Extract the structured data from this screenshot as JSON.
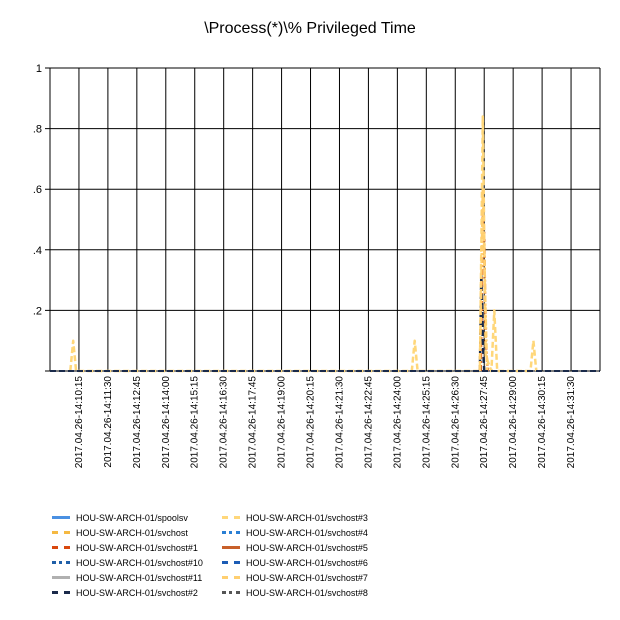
{
  "chart_data": {
    "type": "line",
    "title": "\\Process(*)\\% Privileged Time",
    "xlabel": "",
    "ylabel": "",
    "ylim": [
      0,
      1
    ],
    "y_ticks": [
      "",
      ".2",
      ".4",
      ".6",
      ".8",
      "1"
    ],
    "grid": true,
    "legend_position": "bottom",
    "x_tick_labels": [
      "2017.04.26-14:10:15",
      "2017.04.26-14:11:30",
      "2017.04.26-14:12:45",
      "2017.04.26-14:14:00",
      "2017.04.26-14:15:15",
      "2017.04.26-14:16:30",
      "2017.04.26-14:17:45",
      "2017.04.26-14:19:00",
      "2017.04.26-14:20:15",
      "2017.04.26-14:21:30",
      "2017.04.26-14:22:45",
      "2017.04.26-14:24:00",
      "2017.04.26-14:25:15",
      "2017.04.26-14:26:30",
      "2017.04.26-14:27:45",
      "2017.04.26-14:29:00",
      "2017.04.26-14:30:15",
      "2017.04.26-14:31:30"
    ],
    "series": [
      {
        "name": "HOU-SW-ARCH-01/spoolsv",
        "color": "#4a90e2",
        "dash": "solid",
        "points": []
      },
      {
        "name": "HOU-SW-ARCH-01/svchost",
        "color": "#f5b942",
        "dash": "dash",
        "points": []
      },
      {
        "name": "HOU-SW-ARCH-01/svchost#1",
        "color": "#d9480f",
        "dash": "dashdot",
        "points": [
          [
            13.88,
            0
          ],
          [
            13.95,
            0.52
          ],
          [
            14.0,
            0.45
          ],
          [
            14.05,
            0.1
          ],
          [
            14.12,
            0
          ]
        ]
      },
      {
        "name": "HOU-SW-ARCH-01/svchost#10",
        "color": "#1f5fa8",
        "dash": "dot",
        "points": []
      },
      {
        "name": "HOU-SW-ARCH-01/svchost#11",
        "color": "#b0b0b0",
        "dash": "solid",
        "points": []
      },
      {
        "name": "HOU-SW-ARCH-01/svchost#2",
        "color": "#1a2a4a",
        "dash": "dash",
        "points": [
          [
            13.85,
            0
          ],
          [
            13.9,
            0.32
          ],
          [
            13.95,
            0.1
          ],
          [
            14.0,
            0
          ]
        ]
      },
      {
        "name": "HOU-SW-ARCH-01/svchost#3",
        "color": "#ffd77a",
        "dash": "dash",
        "points": [
          [
            -0.3,
            0
          ],
          [
            -0.2,
            0.1
          ],
          [
            -0.1,
            0
          ],
          [
            11.5,
            0
          ],
          [
            11.6,
            0.1
          ],
          [
            11.7,
            0
          ],
          [
            13.85,
            0
          ],
          [
            13.95,
            0.84
          ],
          [
            14.05,
            0.05
          ],
          [
            14.25,
            0
          ],
          [
            14.35,
            0.2
          ],
          [
            14.45,
            0
          ],
          [
            15.6,
            0
          ],
          [
            15.7,
            0.1
          ],
          [
            15.8,
            0
          ]
        ]
      },
      {
        "name": "HOU-SW-ARCH-01/svchost#4",
        "color": "#2a7fd4",
        "dash": "dot",
        "points": []
      },
      {
        "name": "HOU-SW-ARCH-01/svchost#5",
        "color": "#c8602a",
        "dash": "solid",
        "points": []
      },
      {
        "name": "HOU-SW-ARCH-01/svchost#6",
        "color": "#1c5cb5",
        "dash": "dash",
        "points": []
      },
      {
        "name": "HOU-SW-ARCH-01/svchost#7",
        "color": "#ffcf70",
        "dash": "dashdot",
        "points": [
          [
            13.85,
            0
          ],
          [
            13.95,
            0.6
          ],
          [
            14.02,
            0.3
          ],
          [
            14.1,
            0
          ]
        ]
      },
      {
        "name": "HOU-SW-ARCH-01/svchost#8",
        "color": "#555555",
        "dash": "dot",
        "points": []
      }
    ]
  }
}
